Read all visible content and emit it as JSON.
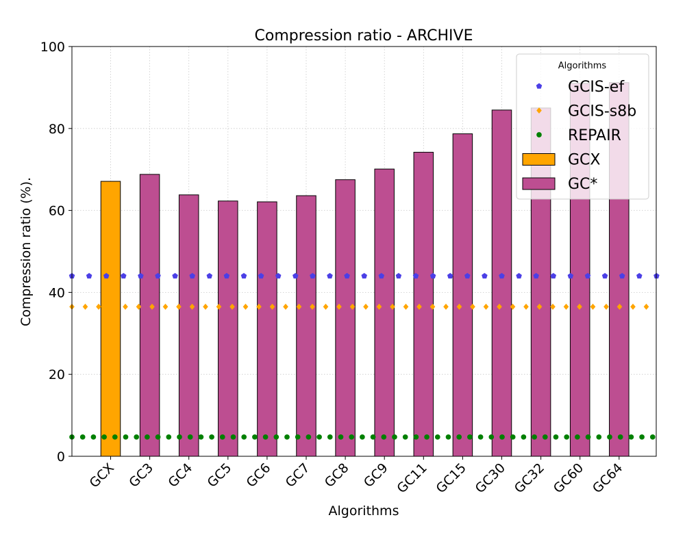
{
  "chart_data": {
    "type": "bar",
    "title": "Compression ratio -  ARCHIVE",
    "xlabel": "Algorithms",
    "ylabel": "Compression ratio (%).",
    "ylim": [
      0,
      100
    ],
    "yticks": [
      0,
      20,
      40,
      60,
      80,
      100
    ],
    "grid": true,
    "categories": [
      "GCX",
      "GC3",
      "GC4",
      "GC5",
      "GC6",
      "GC7",
      "GC8",
      "GC9",
      "GC11",
      "GC15",
      "GC30",
      "GC32",
      "GC60",
      "GC64"
    ],
    "series": [
      {
        "name": "GCX",
        "kind": "bar",
        "color": "#FFA500",
        "values": [
          67.1,
          null,
          null,
          null,
          null,
          null,
          null,
          null,
          null,
          null,
          null,
          null,
          null,
          null
        ]
      },
      {
        "name": "GC*",
        "kind": "bar",
        "color": "#BD4E91",
        "values": [
          null,
          68.8,
          63.8,
          62.3,
          62.1,
          63.6,
          67.5,
          70.1,
          74.2,
          78.7,
          84.5,
          85.0,
          91.0,
          91.2
        ]
      },
      {
        "name": "GCIS-ef",
        "kind": "reference-line",
        "marker": "pentagon",
        "color": "#4B3FE6",
        "value": 44.0
      },
      {
        "name": "GCIS-s8b",
        "kind": "reference-line",
        "marker": "diamond",
        "color": "#FFA500",
        "value": 36.5
      },
      {
        "name": "REPAIR",
        "kind": "reference-line",
        "marker": "circle",
        "color": "#008000",
        "value": 4.7
      }
    ],
    "legend": {
      "title": "Algorithms",
      "placement": "top-right",
      "entries": [
        "GCIS-ef",
        "GCIS-s8b",
        "REPAIR",
        "GCX",
        "GC*"
      ]
    }
  }
}
